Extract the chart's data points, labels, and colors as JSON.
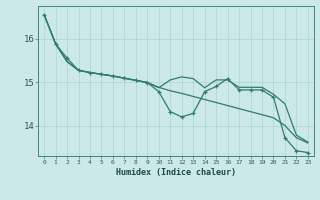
{
  "xlabel": "Humidex (Indice chaleur)",
  "bg_color": "#cce8e8",
  "line_color": "#2e7d6e",
  "grid_color": "#aad4d4",
  "x_values": [
    0,
    1,
    2,
    3,
    4,
    5,
    6,
    7,
    8,
    9,
    10,
    11,
    12,
    13,
    14,
    15,
    16,
    17,
    18,
    19,
    20,
    21,
    22,
    23
  ],
  "line_smooth": [
    16.55,
    15.88,
    15.47,
    15.27,
    15.22,
    15.18,
    15.14,
    15.09,
    15.04,
    14.99,
    14.88,
    14.8,
    14.74,
    14.67,
    14.6,
    14.53,
    14.46,
    14.39,
    14.32,
    14.25,
    14.18,
    14.0,
    13.72,
    13.6
  ],
  "line_mid": [
    16.55,
    15.88,
    15.47,
    15.27,
    15.22,
    15.18,
    15.14,
    15.09,
    15.04,
    14.99,
    14.87,
    15.05,
    15.12,
    15.08,
    14.87,
    15.05,
    15.05,
    14.88,
    14.88,
    14.88,
    14.72,
    14.5,
    13.78,
    13.62
  ],
  "line_jagged": [
    16.55,
    15.88,
    15.55,
    15.27,
    15.22,
    15.18,
    15.14,
    15.09,
    15.04,
    14.99,
    14.78,
    14.32,
    14.2,
    14.28,
    14.78,
    14.9,
    15.08,
    14.82,
    14.82,
    14.82,
    14.65,
    13.72,
    13.42,
    13.38
  ],
  "ylim": [
    13.3,
    16.75
  ],
  "yticks": [
    14,
    15,
    16
  ],
  "xlim": [
    -0.5,
    23.5
  ]
}
